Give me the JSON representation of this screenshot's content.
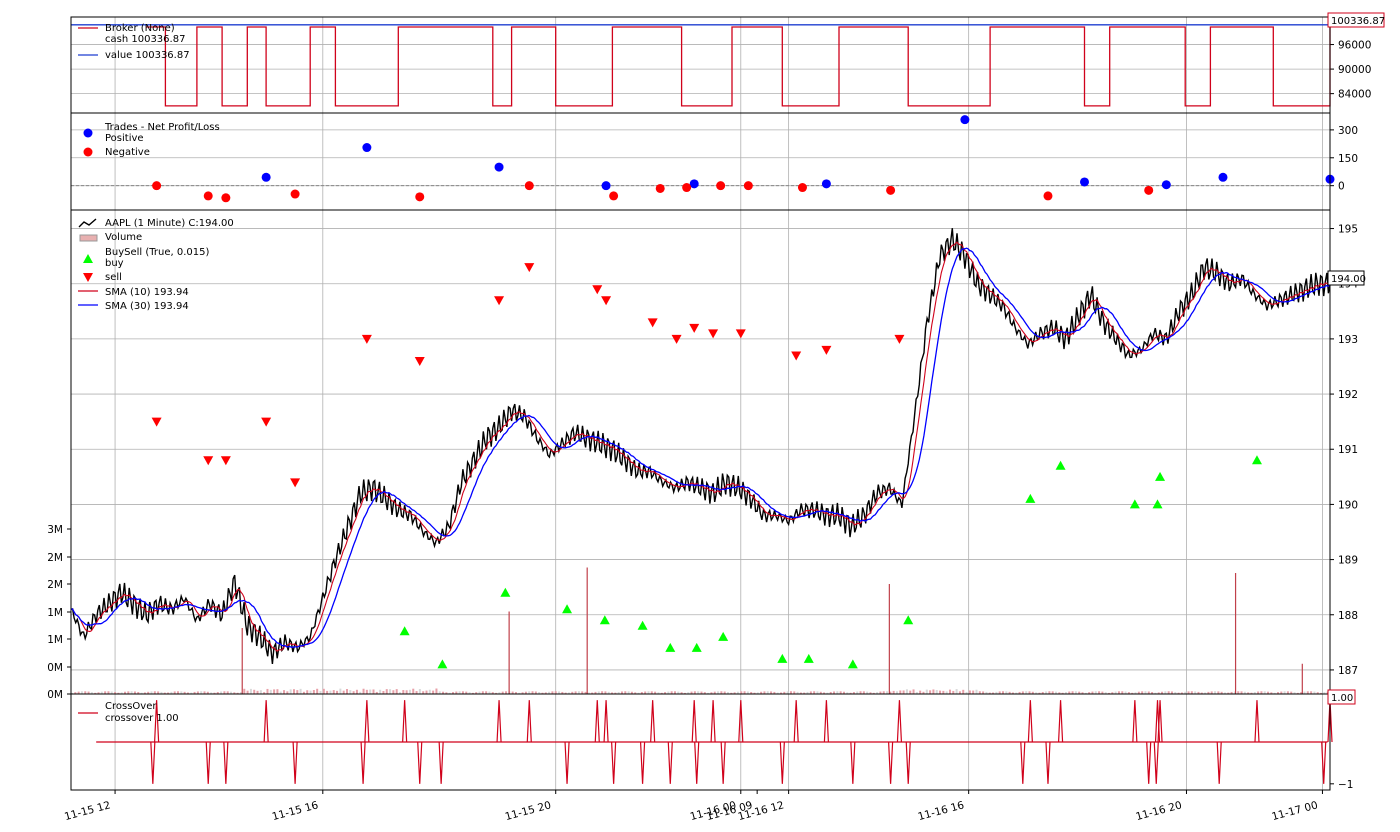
{
  "colors": {
    "price": "#000000",
    "sma_fast": "#d0021b",
    "sma_slow": "#0000ff",
    "cash": "#d0021b",
    "value": "#1f3fd0",
    "positive": "#0000ff",
    "negative": "#ff0000",
    "buy": "#00ff00",
    "sell": "#ff0000",
    "crossover": "#d0021b",
    "volume_up": "#d9d9d9",
    "volume_down": "#e8a0a8"
  },
  "chart_data": [
    {
      "panel": "broker",
      "type": "line",
      "legend": [
        "Broker (None)",
        "cash 100336.87",
        "value 100336.87"
      ],
      "last_value_label": "100336.87",
      "y_ticks": [
        "96000",
        "90000",
        "84000"
      ],
      "ylim": [
        80000,
        102000
      ],
      "series": [
        {
          "name": "cash",
          "segments": [
            [
              0.06,
              100300
            ],
            [
              0.07,
              100300
            ],
            [
              0.075,
              81000
            ],
            [
              0.09,
              81000
            ],
            [
              0.1,
              100300
            ],
            [
              0.115,
              100300
            ],
            [
              0.12,
              81000
            ],
            [
              0.135,
              81000
            ],
            [
              0.14,
              100300
            ],
            [
              0.15,
              100300
            ],
            [
              0.155,
              81000
            ],
            [
              0.18,
              81000
            ],
            [
              0.19,
              100300
            ],
            [
              0.205,
              100300
            ],
            [
              0.21,
              81000
            ],
            [
              0.25,
              81000
            ],
            [
              0.26,
              100300
            ],
            [
              0.33,
              100300
            ],
            [
              0.335,
              81000
            ],
            [
              0.345,
              81000
            ],
            [
              0.35,
              100300
            ],
            [
              0.38,
              100300
            ],
            [
              0.385,
              81000
            ],
            [
              0.425,
              81000
            ],
            [
              0.43,
              100300
            ],
            [
              0.48,
              100300
            ],
            [
              0.485,
              81000
            ],
            [
              0.52,
              81000
            ],
            [
              0.525,
              100300
            ],
            [
              0.56,
              100300
            ],
            [
              0.565,
              81000
            ],
            [
              0.6,
              81000
            ],
            [
              0.61,
              100300
            ],
            [
              0.66,
              100300
            ],
            [
              0.665,
              81000
            ],
            [
              0.72,
              81000
            ],
            [
              0.73,
              100300
            ],
            [
              0.8,
              100300
            ],
            [
              0.805,
              81000
            ],
            [
              0.82,
              81000
            ],
            [
              0.825,
              100300
            ],
            [
              0.88,
              100300
            ],
            [
              0.885,
              81000
            ],
            [
              0.9,
              81000
            ],
            [
              0.905,
              100300
            ],
            [
              0.95,
              100300
            ],
            [
              0.955,
              81000
            ],
            [
              0.99,
              81000
            ],
            [
              1.0,
              100300
            ]
          ]
        },
        {
          "name": "value",
          "constant": 100336.87
        }
      ]
    },
    {
      "panel": "trades",
      "type": "scatter",
      "legend": [
        "Trades - Net Profit/Loss",
        "Positive",
        "Negative"
      ],
      "y_ticks": [
        "300",
        "150",
        "0"
      ],
      "ylim": [
        -120,
        380
      ],
      "positive": [
        [
          0.155,
          45
        ],
        [
          0.235,
          205
        ],
        [
          0.34,
          100
        ],
        [
          0.425,
          0
        ],
        [
          0.495,
          10
        ],
        [
          0.6,
          10
        ],
        [
          0.71,
          355
        ],
        [
          0.805,
          20
        ],
        [
          0.87,
          5
        ],
        [
          0.915,
          45
        ],
        [
          1.0,
          35
        ]
      ],
      "negative": [
        [
          0.068,
          0
        ],
        [
          0.109,
          -55
        ],
        [
          0.123,
          -65
        ],
        [
          0.178,
          -45
        ],
        [
          0.277,
          -60
        ],
        [
          0.364,
          0
        ],
        [
          0.431,
          -55
        ],
        [
          0.468,
          -15
        ],
        [
          0.489,
          -10
        ],
        [
          0.516,
          0
        ],
        [
          0.538,
          0
        ],
        [
          0.581,
          -10
        ],
        [
          0.651,
          -25
        ],
        [
          0.776,
          -55
        ],
        [
          0.856,
          -25
        ]
      ]
    },
    {
      "panel": "price",
      "type": "line",
      "legend": [
        "AAPL (1 Minute) C:194.00",
        "Volume",
        "BuySell (True, 0.015)",
        "buy",
        "sell",
        "SMA (10) 193.94",
        "SMA (30) 193.94"
      ],
      "last_value_label": "194.00",
      "y_ticks": [
        "195",
        "194",
        "193",
        "192",
        "191",
        "190",
        "189",
        "188",
        "187"
      ],
      "volume_ticks": [
        "3M",
        "2M",
        "2M",
        "1M",
        "1M",
        "0M",
        "0M"
      ],
      "x_ticks": [
        "11-15 12",
        "11-15 16",
        "11-15 20",
        "11-16 00",
        "11-16 09",
        "11-16 12",
        "11-16 16",
        "11-16 20",
        "11-17 00"
      ],
      "ylim": [
        186.6,
        195.3
      ],
      "close": [
        [
          0.0,
          188.1
        ],
        [
          0.01,
          187.6
        ],
        [
          0.02,
          188.0
        ],
        [
          0.03,
          188.2
        ],
        [
          0.04,
          188.4
        ],
        [
          0.05,
          188.2
        ],
        [
          0.06,
          188.0
        ],
        [
          0.07,
          188.2
        ],
        [
          0.08,
          188.1
        ],
        [
          0.09,
          188.3
        ],
        [
          0.1,
          187.9
        ],
        [
          0.11,
          188.2
        ],
        [
          0.12,
          188.0
        ],
        [
          0.13,
          188.6
        ],
        [
          0.14,
          187.8
        ],
        [
          0.15,
          187.6
        ],
        [
          0.16,
          187.3
        ],
        [
          0.17,
          187.5
        ],
        [
          0.18,
          187.4
        ],
        [
          0.19,
          187.6
        ],
        [
          0.2,
          188.3
        ],
        [
          0.21,
          189.0
        ],
        [
          0.22,
          189.6
        ],
        [
          0.23,
          190.2
        ],
        [
          0.24,
          190.3
        ],
        [
          0.25,
          190.1
        ],
        [
          0.26,
          189.9
        ],
        [
          0.27,
          189.8
        ],
        [
          0.28,
          189.5
        ],
        [
          0.29,
          189.3
        ],
        [
          0.3,
          189.6
        ],
        [
          0.31,
          190.4
        ],
        [
          0.32,
          190.8
        ],
        [
          0.33,
          191.2
        ],
        [
          0.34,
          191.4
        ],
        [
          0.35,
          191.7
        ],
        [
          0.36,
          191.6
        ],
        [
          0.37,
          191.2
        ],
        [
          0.38,
          190.9
        ],
        [
          0.39,
          191.1
        ],
        [
          0.4,
          191.3
        ],
        [
          0.41,
          191.2
        ],
        [
          0.42,
          191.1
        ],
        [
          0.43,
          191.0
        ],
        [
          0.44,
          190.8
        ],
        [
          0.45,
          190.6
        ],
        [
          0.46,
          190.6
        ],
        [
          0.47,
          190.4
        ],
        [
          0.48,
          190.3
        ],
        [
          0.49,
          190.4
        ],
        [
          0.5,
          190.3
        ],
        [
          0.51,
          190.2
        ],
        [
          0.52,
          190.4
        ],
        [
          0.53,
          190.3
        ],
        [
          0.54,
          190.1
        ],
        [
          0.55,
          189.8
        ],
        [
          0.56,
          189.8
        ],
        [
          0.57,
          189.7
        ],
        [
          0.58,
          189.9
        ],
        [
          0.59,
          189.9
        ],
        [
          0.6,
          189.8
        ],
        [
          0.61,
          189.8
        ],
        [
          0.62,
          189.6
        ],
        [
          0.63,
          189.8
        ],
        [
          0.64,
          190.2
        ],
        [
          0.65,
          190.3
        ],
        [
          0.66,
          190.0
        ],
        [
          0.67,
          191.6
        ],
        [
          0.68,
          193.3
        ],
        [
          0.69,
          194.5
        ],
        [
          0.7,
          194.8
        ],
        [
          0.71,
          194.5
        ],
        [
          0.72,
          194.0
        ],
        [
          0.73,
          193.8
        ],
        [
          0.74,
          193.6
        ],
        [
          0.75,
          193.2
        ],
        [
          0.76,
          192.9
        ],
        [
          0.77,
          193.1
        ],
        [
          0.78,
          193.2
        ],
        [
          0.79,
          193.0
        ],
        [
          0.8,
          193.4
        ],
        [
          0.81,
          193.8
        ],
        [
          0.82,
          193.3
        ],
        [
          0.83,
          193.0
        ],
        [
          0.84,
          192.7
        ],
        [
          0.85,
          192.8
        ],
        [
          0.86,
          193.1
        ],
        [
          0.87,
          193.0
        ],
        [
          0.88,
          193.5
        ],
        [
          0.89,
          193.8
        ],
        [
          0.9,
          194.3
        ],
        [
          0.91,
          194.2
        ],
        [
          0.92,
          194.0
        ],
        [
          0.93,
          194.1
        ],
        [
          0.94,
          193.8
        ],
        [
          0.95,
          193.6
        ],
        [
          0.96,
          193.7
        ],
        [
          0.97,
          193.8
        ],
        [
          0.98,
          193.9
        ],
        [
          0.99,
          194.0
        ],
        [
          1.0,
          194.0
        ]
      ],
      "buy_markers": [
        [
          0.265,
          187.7
        ],
        [
          0.295,
          187.1
        ],
        [
          0.345,
          188.4
        ],
        [
          0.394,
          188.1
        ],
        [
          0.424,
          187.9
        ],
        [
          0.454,
          187.8
        ],
        [
          0.476,
          187.4
        ],
        [
          0.497,
          187.4
        ],
        [
          0.518,
          187.6
        ],
        [
          0.565,
          187.2
        ],
        [
          0.586,
          187.2
        ],
        [
          0.621,
          187.1
        ],
        [
          0.665,
          187.9
        ],
        [
          0.762,
          190.1
        ],
        [
          0.786,
          190.7
        ],
        [
          0.845,
          190.0
        ],
        [
          0.863,
          190.0
        ],
        [
          0.865,
          190.5
        ],
        [
          0.942,
          190.8
        ]
      ],
      "sell_markers": [
        [
          0.068,
          191.5
        ],
        [
          0.109,
          190.8
        ],
        [
          0.123,
          190.8
        ],
        [
          0.155,
          191.5
        ],
        [
          0.178,
          190.4
        ],
        [
          0.235,
          193.0
        ],
        [
          0.277,
          192.6
        ],
        [
          0.34,
          193.7
        ],
        [
          0.364,
          194.3
        ],
        [
          0.418,
          193.9
        ],
        [
          0.425,
          193.7
        ],
        [
          0.462,
          193.3
        ],
        [
          0.481,
          193.0
        ],
        [
          0.495,
          193.2
        ],
        [
          0.51,
          193.1
        ],
        [
          0.532,
          193.1
        ],
        [
          0.576,
          192.7
        ],
        [
          0.6,
          192.8
        ],
        [
          0.658,
          193.0
        ]
      ],
      "volume_spikes": [
        [
          0.136,
          1.2
        ],
        [
          0.348,
          1.5
        ],
        [
          0.41,
          2.3
        ],
        [
          0.65,
          2.0
        ],
        [
          0.925,
          2.2
        ],
        [
          0.978,
          0.55
        ]
      ]
    },
    {
      "panel": "crossover",
      "type": "line",
      "legend": [
        "CrossOver",
        "crossover 1.00"
      ],
      "last_value_label": "1.00",
      "y_ticks": [
        "1",
        "−1"
      ],
      "ylim": [
        -1.1,
        1.1
      ],
      "spikes_up": [
        0.068,
        0.155,
        0.235,
        0.265,
        0.34,
        0.364,
        0.418,
        0.425,
        0.462,
        0.495,
        0.51,
        0.532,
        0.576,
        0.6,
        0.658,
        0.762,
        0.786,
        0.845,
        0.863,
        0.865,
        0.942,
        1.0
      ],
      "spikes_down": [
        0.065,
        0.109,
        0.123,
        0.178,
        0.232,
        0.277,
        0.294,
        0.394,
        0.431,
        0.454,
        0.476,
        0.497,
        0.518,
        0.565,
        0.621,
        0.651,
        0.665,
        0.756,
        0.776,
        0.856,
        0.862,
        0.912,
        0.995
      ]
    }
  ]
}
